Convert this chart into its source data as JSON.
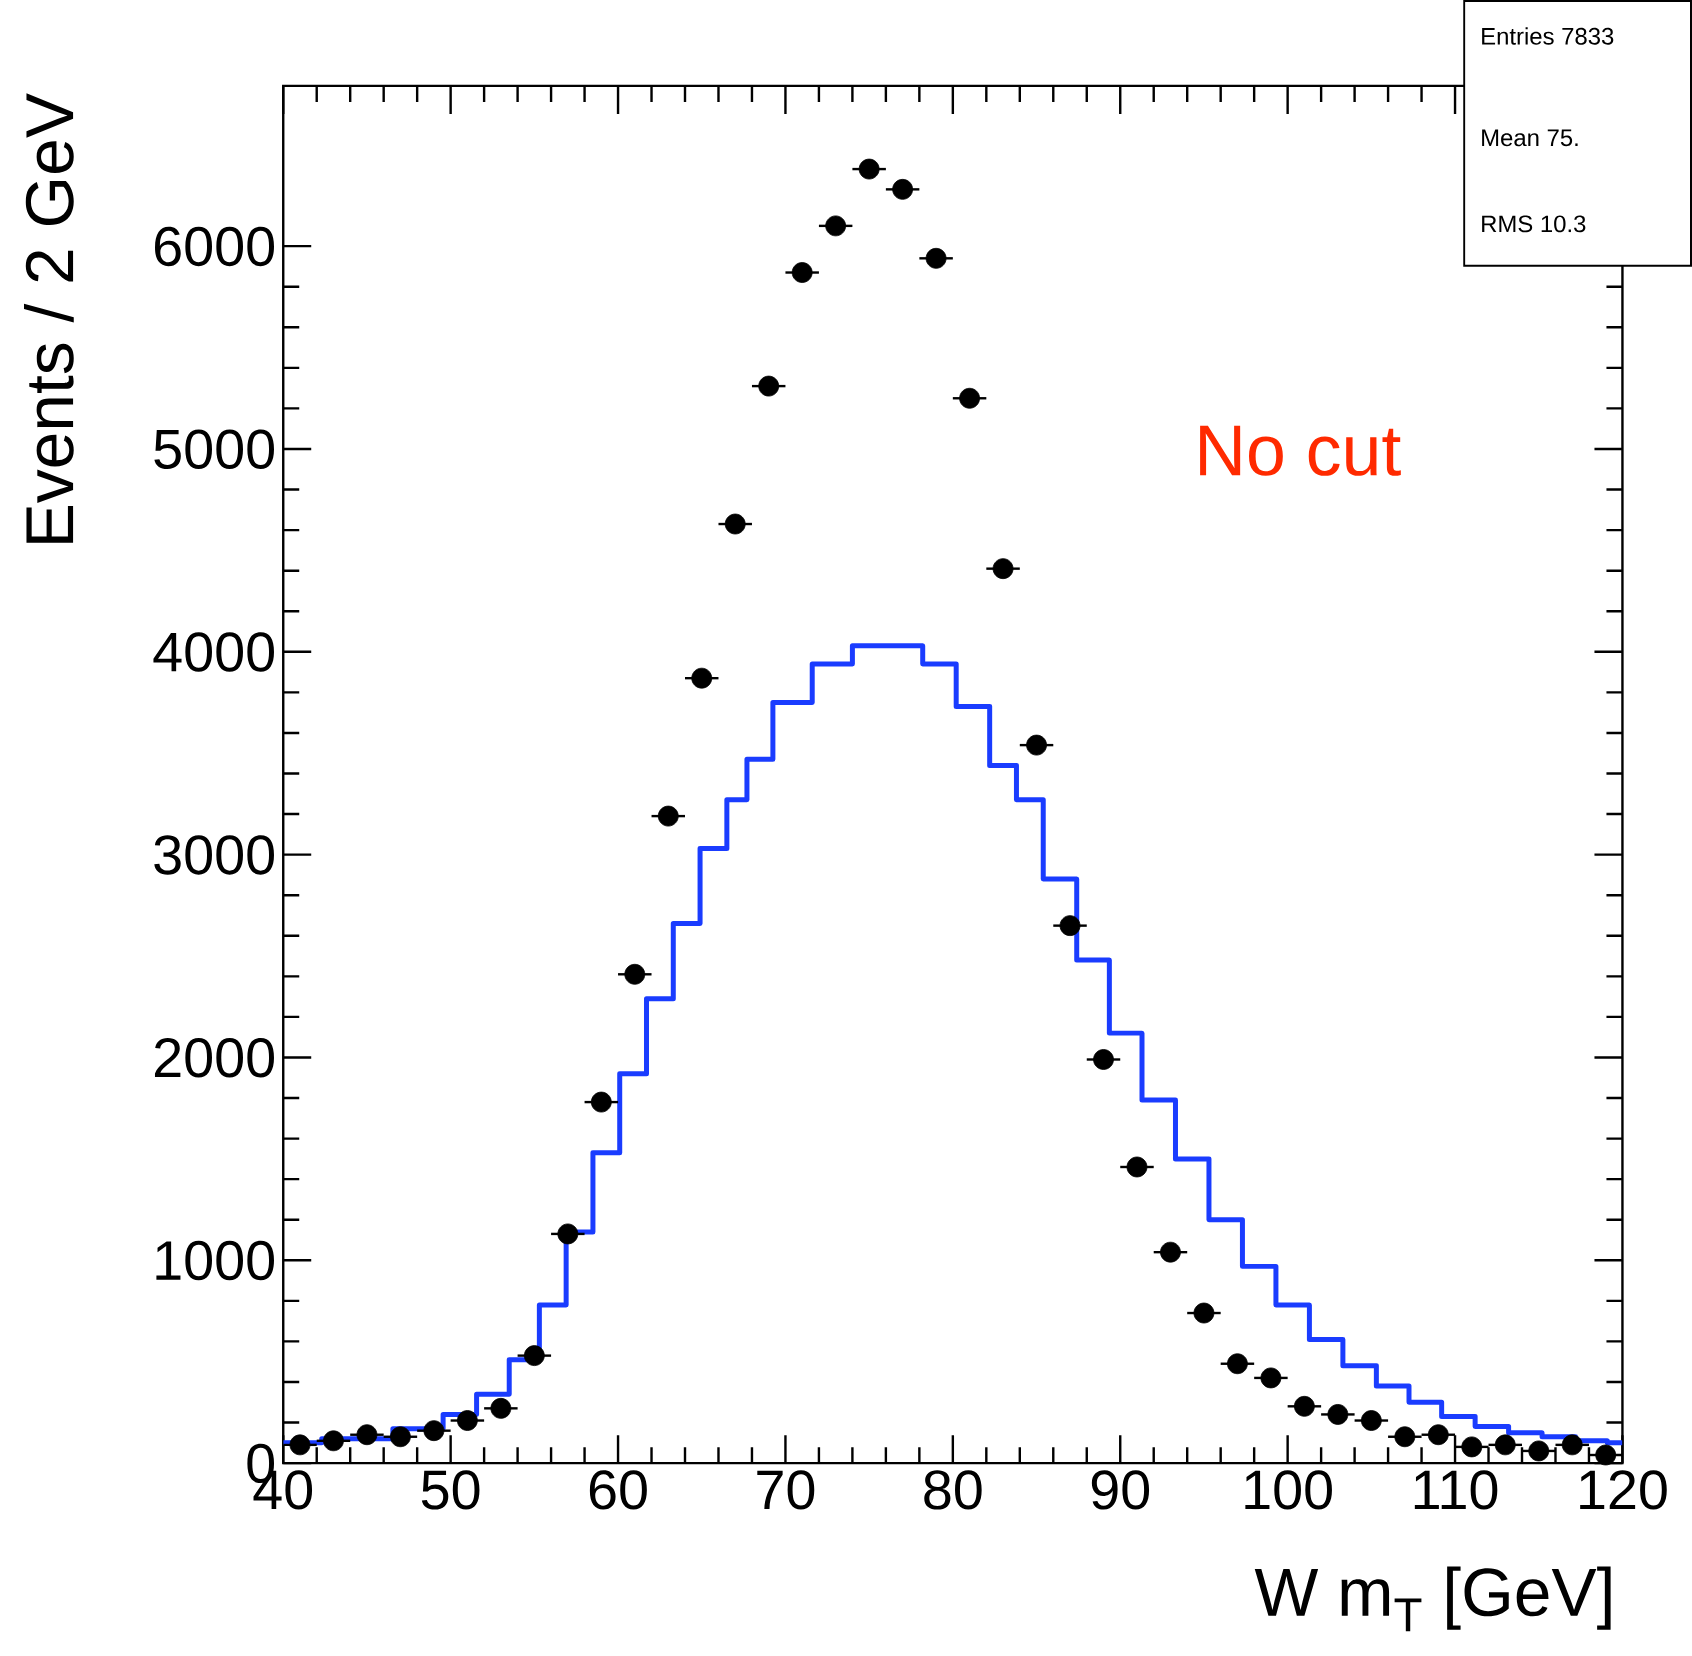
{
  "chart_data": {
    "type": "scatter",
    "xlabel": "W m$_{T}$ [GeV]",
    "ylabel": "Events / 2 GeV",
    "xlim": [
      40,
      120
    ],
    "ylim": [
      0,
      6790
    ],
    "xticks": [
      40,
      50,
      60,
      70,
      80,
      90,
      100,
      110,
      120
    ],
    "yticks": [
      0,
      1000,
      2000,
      3000,
      4000,
      5000,
      6000
    ],
    "annotations": [
      "No cut",
      "Entries 7833",
      "Mean 75.",
      "RMS 10.3"
    ],
    "series": [
      {
        "type": "step",
        "color": "#1a3cff",
        "marker": "none",
        "x": [
          40,
          44.6,
          48.5,
          50.6,
          52.5,
          54.5,
          56.1,
          57.7,
          59.3,
          60.9,
          62.5,
          64.1,
          65.7,
          67.3,
          68.1,
          70.4,
          72.8,
          75.2,
          77.2,
          79.2,
          81.2,
          83.2,
          84.4,
          86.4,
          88.4,
          90.3,
          92.3,
          94.3,
          96.3,
          98.3,
          100.3,
          102.3,
          104.3,
          106.3,
          108.2,
          110.2,
          112.2,
          114.2,
          116.2,
          118.2,
          120
        ],
        "values": [
          100,
          120,
          170,
          240,
          340,
          510,
          780,
          1140,
          1530,
          1920,
          2290,
          2660,
          3030,
          3270,
          3470,
          3750,
          3940,
          4030,
          4030,
          3940,
          3730,
          3440,
          3270,
          2880,
          2480,
          2120,
          1790,
          1500,
          1200,
          970,
          780,
          610,
          480,
          380,
          300,
          230,
          180,
          150,
          130,
          110,
          100
        ]
      },
      {
        "type": "scatter",
        "color": "#000000",
        "marker": "circle",
        "x": [
          41,
          43,
          45,
          47,
          49,
          51,
          53,
          55,
          57,
          59,
          61,
          63,
          65,
          67,
          69,
          71,
          73,
          75,
          77,
          79,
          81,
          83,
          85,
          87,
          89,
          91,
          93,
          95,
          97,
          99,
          101,
          103,
          105,
          107,
          109,
          111,
          113,
          115,
          117,
          119
        ],
        "values": [
          90,
          110,
          140,
          130,
          160,
          210,
          270,
          530,
          1130,
          1780,
          2410,
          3190,
          3870,
          4630,
          5310,
          5870,
          6100,
          6380,
          6280,
          5940,
          5250,
          4410,
          3540,
          2650,
          1990,
          1460,
          1040,
          740,
          490,
          420,
          280,
          240,
          210,
          130,
          140,
          80,
          90,
          60,
          90,
          40
        ],
        "xerrors": [
          1,
          1,
          1,
          1,
          1,
          1,
          1,
          1,
          1,
          1,
          1,
          1,
          1,
          1,
          1,
          1,
          1,
          1,
          1,
          1,
          1,
          1,
          1,
          1,
          1,
          1,
          1,
          1,
          1,
          1,
          1,
          1,
          1,
          1,
          1,
          1,
          1,
          1,
          1,
          1
        ]
      }
    ]
  }
}
